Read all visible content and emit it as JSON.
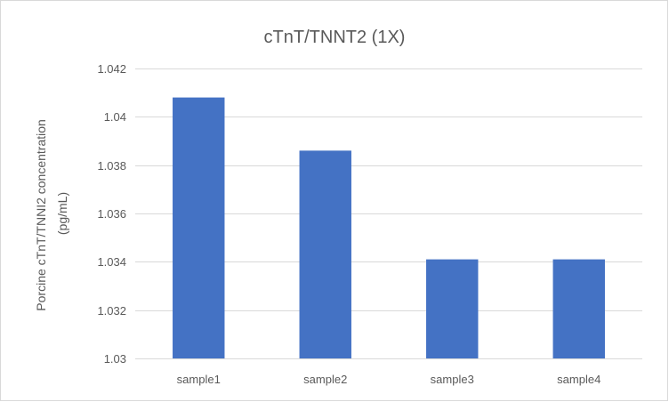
{
  "chart_data": {
    "type": "bar",
    "title": "cTnT/TNNT2 (1X)",
    "xlabel": "",
    "ylabel": [
      "Porcine cTnT/TNNI2 concentration",
      "(pg/mL)"
    ],
    "categories": [
      "sample1",
      "sample2",
      "sample3",
      "sample4"
    ],
    "values": [
      1.0408,
      1.0386,
      1.0341,
      1.0341
    ],
    "ylim": [
      1.03,
      1.042
    ],
    "yticks": [
      1.03,
      1.032,
      1.034,
      1.036,
      1.038,
      1.04,
      1.042
    ],
    "ytick_labels": [
      "1.03",
      "1.032",
      "1.034",
      "1.036",
      "1.038",
      "1.04",
      "1.042"
    ],
    "grid": true,
    "legend": "none",
    "bar_color": "#4472c4"
  }
}
